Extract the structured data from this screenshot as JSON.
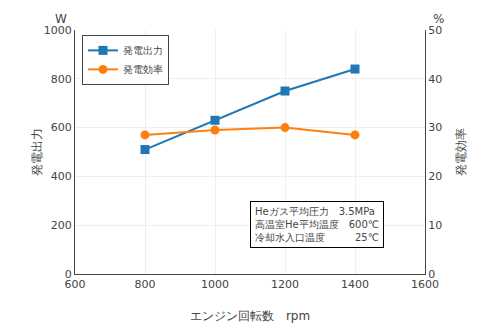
{
  "chart_data": {
    "type": "line",
    "x": [
      800,
      1000,
      1200,
      1400
    ],
    "series": [
      {
        "name": "発電出力",
        "values": [
          510,
          630,
          750,
          840
        ],
        "marker": "square"
      },
      {
        "name": "発電効率",
        "values": [
          28.5,
          29.5,
          30.0,
          28.5
        ],
        "marker": "circle",
        "axis": "y2"
      }
    ],
    "xlabel": "エンジン回転数　rpm",
    "ylabel": "発電出力",
    "ylabel_unit": "W",
    "y2label": "発電効率",
    "y2label_unit": "%",
    "annotation": "Heガス平均圧力　3.5MPa\n高温室He平均温度　600℃\n冷却水入口温度　　　25℃",
    "xlim": [
      600,
      1600
    ],
    "xticks": [
      600,
      800,
      1000,
      1200,
      1400,
      1600
    ],
    "ylim": [
      0,
      1000
    ],
    "yticks": [
      0,
      200,
      400,
      600,
      800,
      1000
    ],
    "y2lim": [
      0,
      50
    ],
    "y2ticks": [
      0,
      10,
      20,
      30,
      40,
      50
    ],
    "grid": true,
    "legend": "upper left"
  }
}
